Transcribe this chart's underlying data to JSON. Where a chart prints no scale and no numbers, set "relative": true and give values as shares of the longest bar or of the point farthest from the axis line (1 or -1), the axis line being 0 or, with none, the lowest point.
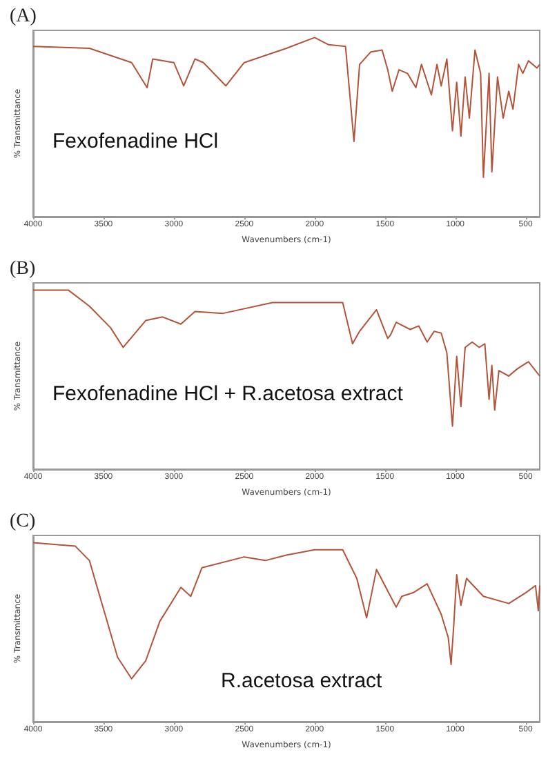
{
  "chart_data": [
    {
      "type": "line",
      "title": "(A)",
      "xlabel": "Wavenumbers (cm-1)",
      "ylabel": "% Transmittance",
      "relative": true,
      "xlim": [
        4000,
        400
      ],
      "xticks": [
        4000,
        3500,
        3000,
        2500,
        2000,
        1500,
        1000,
        500
      ],
      "annotations": [
        "Fexofenadine HCl"
      ],
      "line_style": "solid",
      "series": [
        {
          "color": "#b3533a",
          "x": [
            4000,
            3600,
            3300,
            3190,
            3150,
            3000,
            2930,
            2850,
            2790,
            2630,
            2500,
            2200,
            2000,
            1900,
            1780,
            1720,
            1680,
            1600,
            1520,
            1480,
            1448,
            1400,
            1340,
            1280,
            1240,
            1170,
            1130,
            1100,
            1060,
            1020,
            990,
            960,
            930,
            900,
            860,
            820,
            800,
            760,
            740,
            700,
            660,
            620,
            590,
            550,
            520,
            480,
            420,
            400
          ],
          "values": [
            0.95,
            0.94,
            0.86,
            0.72,
            0.88,
            0.86,
            0.73,
            0.88,
            0.86,
            0.73,
            0.86,
            0.94,
            1,
            0.96,
            0.95,
            0.42,
            0.85,
            0.92,
            0.93,
            0.82,
            0.7,
            0.82,
            0.8,
            0.72,
            0.85,
            0.68,
            0.85,
            0.73,
            0.88,
            0.48,
            0.75,
            0.45,
            0.78,
            0.55,
            0.93,
            0.8,
            0.22,
            0.8,
            0.25,
            0.78,
            0.55,
            0.7,
            0.6,
            0.85,
            0.8,
            0.87,
            0.83,
            0.85
          ]
        }
      ]
    },
    {
      "type": "line",
      "title": "(B)",
      "xlabel": "Wavenumbers (cm-1)",
      "ylabel": "% Transmittance",
      "relative": true,
      "xlim": [
        4000,
        400
      ],
      "xticks": [
        4000,
        3500,
        3000,
        2500,
        2000,
        1500,
        1000,
        500
      ],
      "annotations": [
        "Fexofenadine HCl + R.acetosa extract"
      ],
      "line_style": "solid",
      "series": [
        {
          "color": "#b3533a",
          "x": [
            4000,
            3750,
            3600,
            3450,
            3360,
            3200,
            3080,
            2950,
            2850,
            2650,
            2300,
            2000,
            1800,
            1730,
            1680,
            1560,
            1480,
            1460,
            1420,
            1320,
            1260,
            1200,
            1150,
            1100,
            1060,
            1020,
            990,
            960,
            930,
            880,
            830,
            790,
            760,
            740,
            720,
            690,
            620,
            560,
            480,
            400
          ],
          "values": [
            1,
            1,
            0.91,
            0.79,
            0.68,
            0.83,
            0.85,
            0.81,
            0.88,
            0.87,
            0.93,
            0.93,
            0.93,
            0.7,
            0.77,
            0.89,
            0.73,
            0.75,
            0.82,
            0.78,
            0.8,
            0.71,
            0.77,
            0.76,
            0.65,
            0.24,
            0.63,
            0.35,
            0.68,
            0.71,
            0.68,
            0.7,
            0.39,
            0.58,
            0.33,
            0.55,
            0.52,
            0.56,
            0.6,
            0.52
          ]
        }
      ]
    },
    {
      "type": "line",
      "title": "(C)",
      "xlabel": "Wavenumbers (cm-1)",
      "ylabel": "% Transmittance",
      "relative": true,
      "xlim": [
        4000,
        400
      ],
      "xticks": [
        4000,
        3500,
        3000,
        2500,
        2000,
        1500,
        1000,
        500
      ],
      "annotations": [
        "R.acetosa extract"
      ],
      "line_style": "solid",
      "series": [
        {
          "color": "#b3533a",
          "x": [
            4000,
            3700,
            3600,
            3500,
            3400,
            3300,
            3200,
            3100,
            2950,
            2880,
            2800,
            2500,
            2350,
            2200,
            2000,
            1800,
            1700,
            1630,
            1560,
            1480,
            1420,
            1380,
            1300,
            1200,
            1100,
            1050,
            1030,
            1010,
            990,
            960,
            920,
            800,
            620,
            500,
            430,
            410,
            400
          ],
          "values": [
            1,
            0.98,
            0.9,
            0.63,
            0.36,
            0.24,
            0.34,
            0.56,
            0.75,
            0.7,
            0.86,
            0.92,
            0.9,
            0.93,
            0.96,
            0.96,
            0.8,
            0.58,
            0.85,
            0.73,
            0.64,
            0.7,
            0.72,
            0.77,
            0.6,
            0.47,
            0.32,
            0.55,
            0.82,
            0.65,
            0.8,
            0.7,
            0.66,
            0.72,
            0.76,
            0.62,
            0.76
          ]
        }
      ]
    }
  ]
}
